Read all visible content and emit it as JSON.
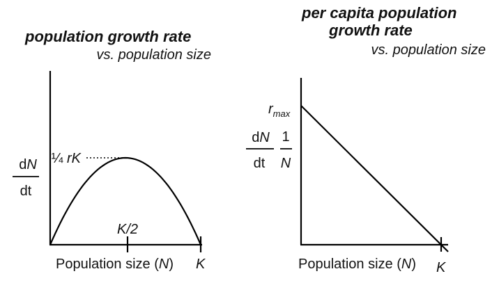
{
  "chart_data": [
    {
      "type": "line",
      "title": "population growth rate",
      "subtitle": "vs. population size",
      "xlabel": "Population size (N)",
      "ylabel_num": "dN",
      "ylabel_den": "dt",
      "tick_mid": "K/2",
      "tick_end": "K",
      "peak_label": "¼ rK",
      "x": [
        0,
        0.1,
        0.2,
        0.3,
        0.4,
        0.5,
        0.6,
        0.7,
        0.8,
        0.9,
        1.0
      ],
      "y": [
        0,
        0.09,
        0.16,
        0.21,
        0.24,
        0.25,
        0.24,
        0.21,
        0.16,
        0.09,
        0
      ],
      "xlim": [
        0,
        1
      ],
      "ylim": [
        0,
        0.5
      ]
    },
    {
      "type": "line",
      "title_line1": "per capita population",
      "title_line2": "growth rate",
      "subtitle": "vs. population size",
      "xlabel": "Population size (N)",
      "ylabel_num": "dN",
      "ylabel_den": "dt",
      "ylabel_mult_num": "1",
      "ylabel_mult_den": "N",
      "y_intercept_label": "r",
      "y_intercept_sub": "max",
      "tick_end": "K",
      "x": [
        0,
        1
      ],
      "y": [
        1,
        0
      ],
      "xlim": [
        0,
        1.05
      ],
      "ylim": [
        0,
        1.25
      ]
    }
  ]
}
